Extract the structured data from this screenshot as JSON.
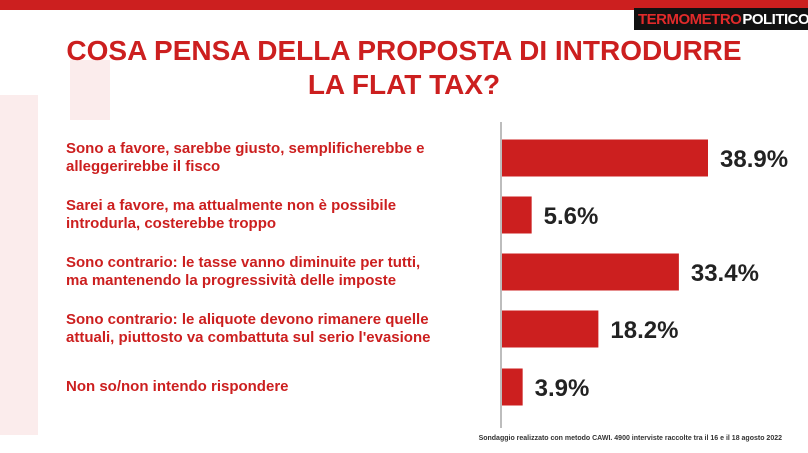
{
  "brand": {
    "part1": "TERMOMETRO",
    "part2": "POLITICO"
  },
  "title_line1": "COSA PENSA DELLA PROPOSTA DI INTRODURRE",
  "title_line2": "LA FLAT TAX?",
  "footnote": "Sondaggio realizzato con metodo CAWI. 4900 interviste raccolte tra il 16 e il 18 agosto 2022",
  "colors": {
    "bar": "#cc1f1f",
    "title": "#cc1f1f",
    "accent": "#cc1f1f"
  },
  "chart_data": {
    "type": "bar",
    "orientation": "horizontal",
    "title": "COSA PENSA DELLA PROPOSTA DI INTRODURRE LA FLAT TAX?",
    "categories": [
      [
        "Sono a favore, sarebbe giusto, semplificherebbe e",
        "alleggerirebbe il fisco"
      ],
      [
        "Sarei a favore, ma attualmente non è possibile",
        "introdurla, costerebbe troppo"
      ],
      [
        "Sono contrario: le tasse vanno diminuite per tutti,",
        "ma mantenendo la progressività  delle imposte"
      ],
      [
        "Sono contrario: le aliquote devono rimanere quelle",
        "attuali, piuttosto va combattuta sul serio l'evasione"
      ],
      [
        "Non so/non intendo rispondere"
      ]
    ],
    "values": [
      38.9,
      5.6,
      33.4,
      18.2,
      3.9
    ],
    "value_labels": [
      "38.9%",
      "5.6%",
      "33.4%",
      "18.2%",
      "3.9%"
    ],
    "unit": "%",
    "xlim": [
      0,
      40
    ],
    "grid": false,
    "legend": "none"
  }
}
